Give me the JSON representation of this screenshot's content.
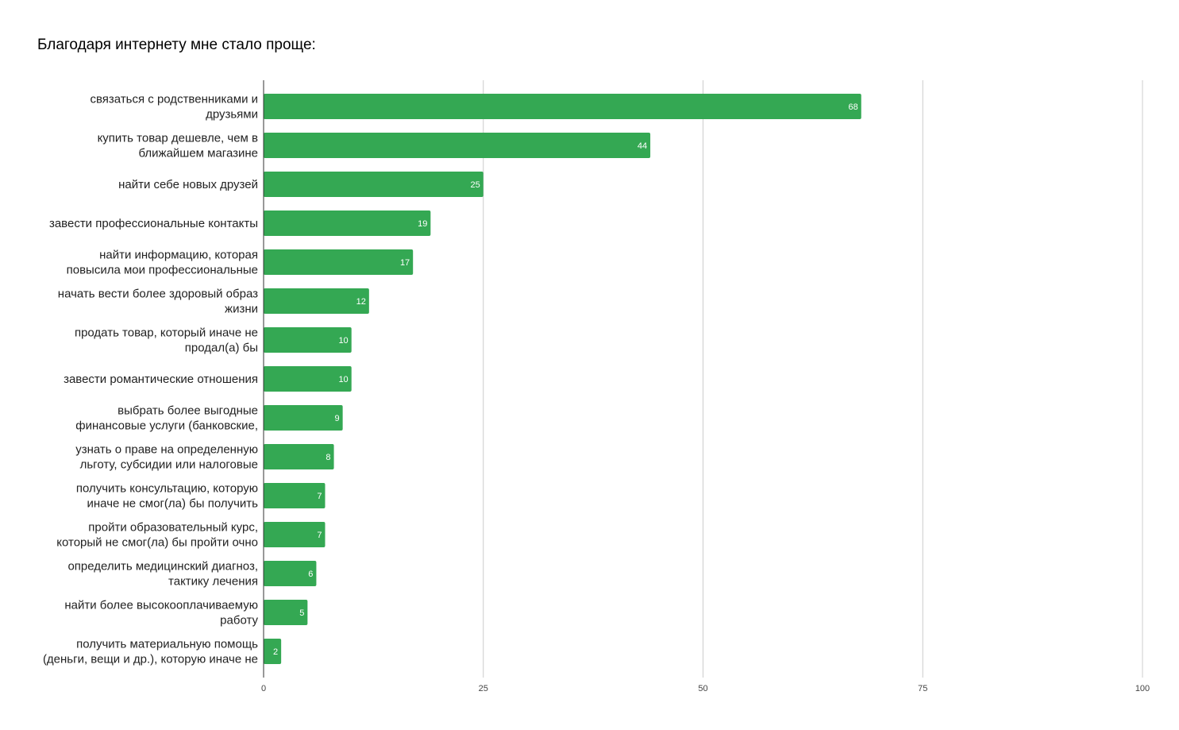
{
  "chart_data": {
    "type": "bar",
    "orientation": "horizontal",
    "title": "Благодаря интернету мне стало проще:",
    "xlim": [
      0,
      100
    ],
    "xticks": [
      "0",
      "25",
      "50",
      "75",
      "100"
    ],
    "grid": true,
    "bar_color": "#34a853",
    "categories": [
      [
        "связаться с родственниками и",
        "друзьями"
      ],
      [
        "купить товар дешевле, чем в",
        "ближайшем магазине"
      ],
      [
        "найти себе новых друзей"
      ],
      [
        "завести профессиональные контакты"
      ],
      [
        "найти информацию, которая",
        "повысила мои профессиональные"
      ],
      [
        "начать вести более здоровый образ",
        "жизни"
      ],
      [
        "продать товар, который иначе не",
        "продал(а) бы"
      ],
      [
        "завести романтические отношения"
      ],
      [
        "выбрать более выгодные",
        "финансовые услуги (банковские,"
      ],
      [
        "узнать о праве на определенную",
        "льготу, субсидии или налоговые"
      ],
      [
        "получить консультацию, которую",
        "иначе не смог(ла) бы получить"
      ],
      [
        "пройти образовательный курс,",
        "который не смог(ла) бы пройти очно"
      ],
      [
        "определить медицинский диагноз,",
        "тактику лечения"
      ],
      [
        "найти более высокооплачиваемую",
        "работу"
      ],
      [
        "получить материальную помощь",
        "(деньги, вещи и др.), которую иначе не"
      ]
    ],
    "values": [
      68,
      44,
      25,
      19,
      17,
      12,
      10,
      10,
      9,
      8,
      7,
      7,
      6,
      5,
      2
    ]
  }
}
